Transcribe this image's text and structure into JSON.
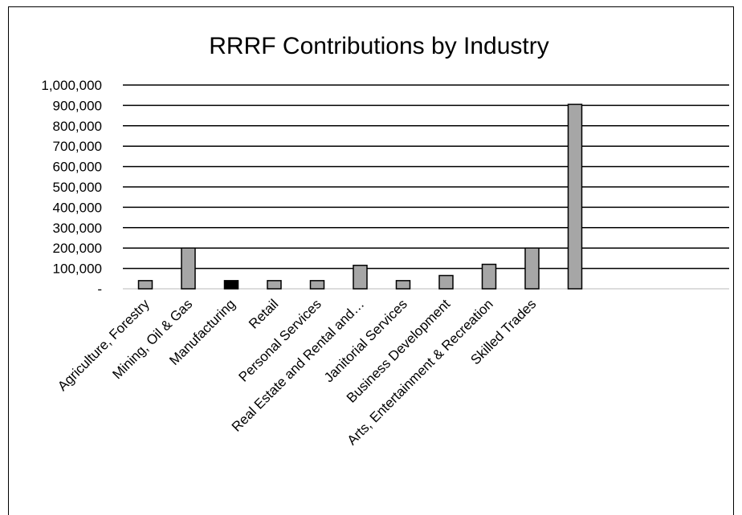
{
  "chart_data": {
    "type": "bar",
    "title": "RRRF Contributions by Industry",
    "xlabel": "",
    "ylabel": "",
    "ylim": [
      0,
      1000000
    ],
    "yticks": [
      {
        "value": 0,
        "label": "-"
      },
      {
        "value": 100000,
        "label": "100,000"
      },
      {
        "value": 200000,
        "label": "200,000"
      },
      {
        "value": 300000,
        "label": "300,000"
      },
      {
        "value": 400000,
        "label": "400,000"
      },
      {
        "value": 500000,
        "label": "500,000"
      },
      {
        "value": 600000,
        "label": "600,000"
      },
      {
        "value": 700000,
        "label": "700,000"
      },
      {
        "value": 800000,
        "label": "800,000"
      },
      {
        "value": 900000,
        "label": "900,000"
      },
      {
        "value": 1000000,
        "label": "1,000,000"
      }
    ],
    "categories": [
      "Agriculture, Forestry",
      "Mining, Oil & Gas",
      "Manufacturing",
      "Retail",
      "Personal Services",
      "Real Estate and Rental and…",
      "Janitorial Services",
      "Business Development",
      "Arts, Entertainment & Recreation",
      "Skilled Trades",
      ""
    ],
    "values": [
      40000,
      200000,
      40000,
      40000,
      40000,
      115000,
      40000,
      65000,
      120000,
      200000,
      905000
    ],
    "bar_colors": [
      "#a6a6a6",
      "#a6a6a6",
      "#000000",
      "#a6a6a6",
      "#a6a6a6",
      "#a6a6a6",
      "#a6a6a6",
      "#a6a6a6",
      "#a6a6a6",
      "#a6a6a6",
      "#a6a6a6"
    ],
    "grid": true,
    "legend": "none"
  }
}
